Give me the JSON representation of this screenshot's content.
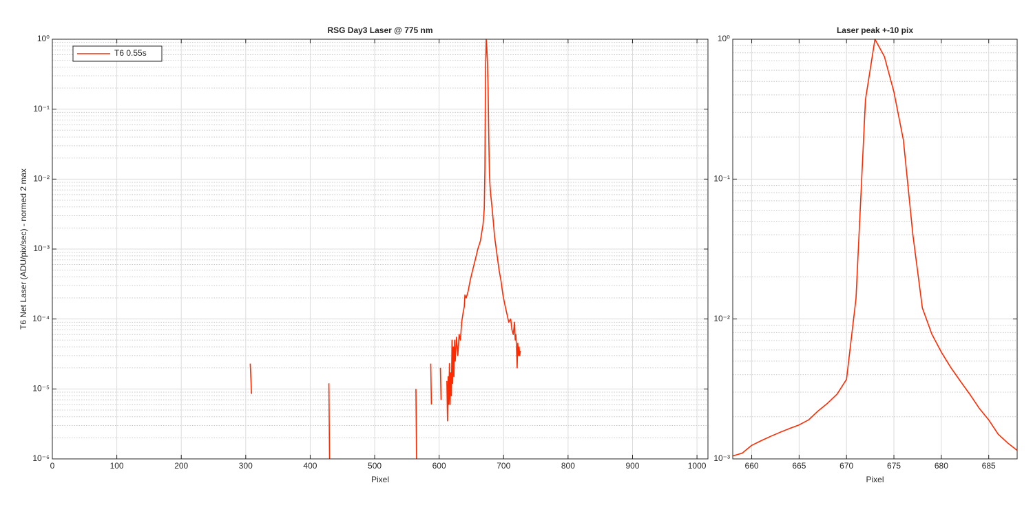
{
  "chart_data": [
    {
      "type": "line",
      "title": "RSG  Day3 Laser @ 775 nm",
      "x_label": "Pixel",
      "y_label": "T6 Net Laser (ADU/pix/sec) - normed 2 max",
      "x": [
        307,
        309,
        350,
        429,
        430,
        500,
        564,
        565,
        575,
        587,
        588,
        595,
        602,
        603,
        608,
        612,
        613,
        614,
        615,
        616,
        617,
        618,
        619,
        620,
        621,
        622,
        623,
        624,
        625,
        627,
        629,
        631,
        633,
        635,
        637,
        639,
        640,
        642,
        645,
        648,
        652,
        656,
        660,
        664,
        666,
        668,
        669,
        670,
        671,
        672,
        673,
        674,
        675,
        676,
        677,
        678,
        679,
        680,
        682,
        684,
        686,
        688,
        690,
        693,
        696,
        699,
        702,
        705,
        708,
        711,
        713,
        715,
        717,
        718,
        719,
        720,
        721,
        722,
        723,
        724,
        725,
        726
      ],
      "series": [
        {
          "name": "T6 0.55s",
          "color": "#ff2a00",
          "values": [
            2.3e-05,
            8.5e-06,
            null,
            1.2e-05,
            1e-06,
            null,
            1e-05,
            1e-06,
            null,
            2.3e-05,
            6e-06,
            null,
            2e-05,
            7e-06,
            null,
            1.3e-05,
            3.5e-06,
            1.5e-05,
            6e-06,
            2.3e-05,
            6e-06,
            1.7e-05,
            8e-06,
            5e-05,
            1.2e-05,
            4e-05,
            1.5e-05,
            5e-05,
            2.5e-05,
            5.5e-05,
            3e-05,
            6e-05,
            5e-05,
            9e-05,
            0.00012,
            0.00015,
            0.00022,
            0.0002,
            0.00025,
            0.00035,
            0.0005,
            0.0007,
            0.001,
            0.0013,
            0.0017,
            0.0022,
            0.0028,
            0.0038,
            0.014,
            0.37,
            1,
            0.75,
            0.45,
            0.19,
            0.04,
            0.012,
            0.008,
            0.006,
            0.004,
            0.0025,
            0.0015,
            0.0011,
            0.0008,
            0.0005,
            0.00035,
            0.00022,
            0.00016,
            0.00012,
            9e-05,
            0.0001,
            7e-05,
            6e-05,
            9e-05,
            5e-05,
            6e-05,
            4e-05,
            2e-05,
            4.5e-05,
            3e-05,
            4e-05,
            3e-05,
            3.5e-05
          ]
        }
      ],
      "xlim": [
        0,
        1017
      ],
      "xticks": [
        0,
        100,
        200,
        300,
        400,
        500,
        600,
        700,
        800,
        900,
        1000
      ],
      "ylim": [
        1e-06,
        1
      ],
      "log_y": true,
      "yticks": [
        {
          "value": 1e-06,
          "label": "10⁻⁶"
        },
        {
          "value": 1e-05,
          "label": "10⁻⁵"
        },
        {
          "value": 0.0001,
          "label": "10⁻⁴"
        },
        {
          "value": 0.001,
          "label": "10⁻³"
        },
        {
          "value": 0.01,
          "label": "10⁻²"
        },
        {
          "value": 0.1,
          "label": "10⁻¹"
        },
        {
          "value": 1,
          "label": "10⁰"
        }
      ],
      "grid": true,
      "minor_grid": true,
      "legend": "northwest"
    },
    {
      "type": "line",
      "title": "Laser peak +-10 pix",
      "x_label": "Pixel",
      "x": [
        658,
        659,
        660,
        661,
        662,
        663,
        664,
        665,
        666,
        667,
        668,
        669,
        670,
        671,
        672,
        673,
        674,
        675,
        676,
        677,
        678,
        679,
        680,
        681,
        682,
        683,
        684,
        685,
        686,
        687,
        688
      ],
      "series": [
        {
          "color": "#ff2a00",
          "values": [
            0.00105,
            0.0011,
            0.00125,
            0.00135,
            0.00145,
            0.00155,
            0.00165,
            0.00175,
            0.0019,
            0.0022,
            0.0025,
            0.0029,
            0.0037,
            0.014,
            0.37,
            1,
            0.75,
            0.42,
            0.19,
            0.04,
            0.012,
            0.0078,
            0.0058,
            0.0045,
            0.0036,
            0.0029,
            0.0023,
            0.0019,
            0.0015,
            0.0013,
            0.00115
          ]
        }
      ],
      "xlim": [
        658,
        688
      ],
      "xticks": [
        660,
        665,
        670,
        675,
        680,
        685
      ],
      "ylim": [
        0.001,
        1
      ],
      "log_y": true,
      "yticks": [
        {
          "value": 0.001,
          "label": "10⁻³"
        },
        {
          "value": 0.01,
          "label": "10⁻²"
        },
        {
          "value": 0.1,
          "label": "10⁻¹"
        },
        {
          "value": 1,
          "label": "10⁰"
        }
      ],
      "grid": true,
      "minor_grid": true
    }
  ]
}
